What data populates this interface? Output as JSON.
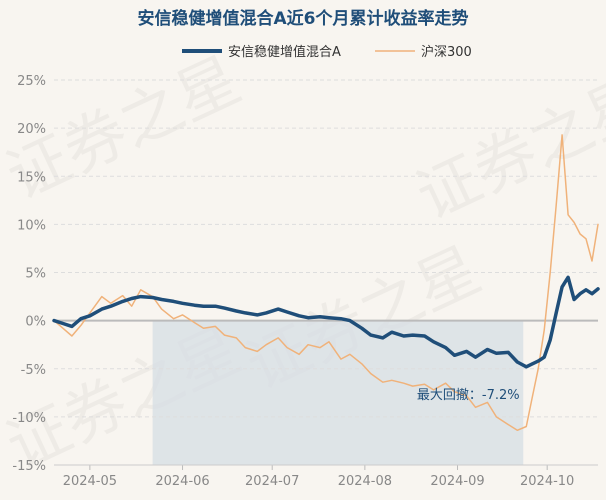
{
  "chart_data": {
    "type": "line",
    "title": "安信稳健增值混合A近6个月累计收益率走势",
    "xlabel": "",
    "ylabel": "",
    "ylim": [
      -15,
      25
    ],
    "yticks": [
      "25%",
      "20%",
      "15%",
      "10%",
      "5%",
      "0%",
      "-5%",
      "-10%",
      "-15%"
    ],
    "ytick_values": [
      25,
      20,
      15,
      10,
      5,
      0,
      -5,
      -10,
      -15
    ],
    "xticks": [
      "2024-05",
      "2024-06",
      "2024-07",
      "2024-08",
      "2024-09",
      "2024-10"
    ],
    "xtick_values": [
      "2024-05-01",
      "2024-06-01",
      "2024-07-01",
      "2024-08-01",
      "2024-09-01",
      "2024-10-01"
    ],
    "x_range": [
      "2024-04-19",
      "2024-10-18"
    ],
    "grid": "horizontal-dashed",
    "legend": "top-center",
    "watermark": "证券之星",
    "annotation": {
      "label": "最大回撤：-7.2%",
      "value": -7.2,
      "x_start": "2024-05-22",
      "x_end": "2024-09-23",
      "color": "#d6dde4"
    },
    "series": [
      {
        "name": "安信稳健增值混合A",
        "color": "#1f4e79",
        "x": [
          "2024-04-19",
          "2024-04-22",
          "2024-04-25",
          "2024-04-28",
          "2024-05-01",
          "2024-05-05",
          "2024-05-08",
          "2024-05-12",
          "2024-05-15",
          "2024-05-18",
          "2024-05-22",
          "2024-05-25",
          "2024-05-29",
          "2024-06-01",
          "2024-06-05",
          "2024-06-08",
          "2024-06-12",
          "2024-06-15",
          "2024-06-19",
          "2024-06-22",
          "2024-06-26",
          "2024-06-29",
          "2024-07-03",
          "2024-07-06",
          "2024-07-10",
          "2024-07-13",
          "2024-07-17",
          "2024-07-20",
          "2024-07-24",
          "2024-07-27",
          "2024-07-31",
          "2024-08-03",
          "2024-08-07",
          "2024-08-10",
          "2024-08-14",
          "2024-08-17",
          "2024-08-21",
          "2024-08-24",
          "2024-08-28",
          "2024-08-31",
          "2024-09-04",
          "2024-09-07",
          "2024-09-11",
          "2024-09-14",
          "2024-09-18",
          "2024-09-21",
          "2024-09-24",
          "2024-09-26",
          "2024-09-28",
          "2024-09-30",
          "2024-10-02",
          "2024-10-04",
          "2024-10-06",
          "2024-10-08",
          "2024-10-10",
          "2024-10-12",
          "2024-10-14",
          "2024-10-16",
          "2024-10-18"
        ],
        "values": [
          0.0,
          -0.3,
          -0.6,
          0.2,
          0.5,
          1.2,
          1.5,
          2.0,
          2.3,
          2.5,
          2.4,
          2.2,
          2.0,
          1.8,
          1.6,
          1.5,
          1.5,
          1.3,
          1.0,
          0.8,
          0.6,
          0.8,
          1.2,
          0.9,
          0.5,
          0.3,
          0.4,
          0.3,
          0.2,
          0.0,
          -0.8,
          -1.5,
          -1.8,
          -1.2,
          -1.6,
          -1.5,
          -1.6,
          -2.2,
          -2.8,
          -3.6,
          -3.2,
          -3.8,
          -3.0,
          -3.4,
          -3.3,
          -4.3,
          -4.8,
          -4.5,
          -4.2,
          -3.8,
          -2.0,
          0.8,
          3.5,
          4.5,
          2.2,
          2.8,
          3.2,
          2.8,
          3.3
        ]
      },
      {
        "name": "沪深300",
        "color": "#f0b27a",
        "x": [
          "2024-04-19",
          "2024-04-22",
          "2024-04-25",
          "2024-04-28",
          "2024-05-01",
          "2024-05-05",
          "2024-05-08",
          "2024-05-12",
          "2024-05-15",
          "2024-05-18",
          "2024-05-22",
          "2024-05-25",
          "2024-05-29",
          "2024-06-01",
          "2024-06-05",
          "2024-06-08",
          "2024-06-12",
          "2024-06-15",
          "2024-06-19",
          "2024-06-22",
          "2024-06-26",
          "2024-06-29",
          "2024-07-03",
          "2024-07-06",
          "2024-07-10",
          "2024-07-13",
          "2024-07-17",
          "2024-07-20",
          "2024-07-24",
          "2024-07-27",
          "2024-07-31",
          "2024-08-03",
          "2024-08-07",
          "2024-08-10",
          "2024-08-14",
          "2024-08-17",
          "2024-08-21",
          "2024-08-24",
          "2024-08-28",
          "2024-08-31",
          "2024-09-04",
          "2024-09-07",
          "2024-09-11",
          "2024-09-14",
          "2024-09-18",
          "2024-09-21",
          "2024-09-24",
          "2024-09-26",
          "2024-09-28",
          "2024-09-30",
          "2024-10-02",
          "2024-10-04",
          "2024-10-06",
          "2024-10-08",
          "2024-10-10",
          "2024-10-12",
          "2024-10-14",
          "2024-10-16",
          "2024-10-18"
        ],
        "values": [
          0.0,
          -0.8,
          -1.6,
          -0.5,
          0.8,
          2.5,
          1.8,
          2.6,
          1.5,
          3.2,
          2.5,
          1.2,
          0.2,
          0.6,
          -0.2,
          -0.8,
          -0.6,
          -1.5,
          -1.8,
          -2.8,
          -3.2,
          -2.5,
          -1.8,
          -2.8,
          -3.5,
          -2.5,
          -2.8,
          -2.2,
          -4.0,
          -3.5,
          -4.5,
          -5.5,
          -6.4,
          -6.2,
          -6.5,
          -6.8,
          -6.6,
          -7.2,
          -6.5,
          -7.4,
          -7.8,
          -9.0,
          -8.5,
          -10.0,
          -10.8,
          -11.4,
          -11.0,
          -8.0,
          -5.0,
          -1.0,
          5.0,
          12.0,
          19.3,
          11.0,
          10.2,
          9.0,
          8.5,
          6.2,
          10.0
        ]
      }
    ]
  }
}
